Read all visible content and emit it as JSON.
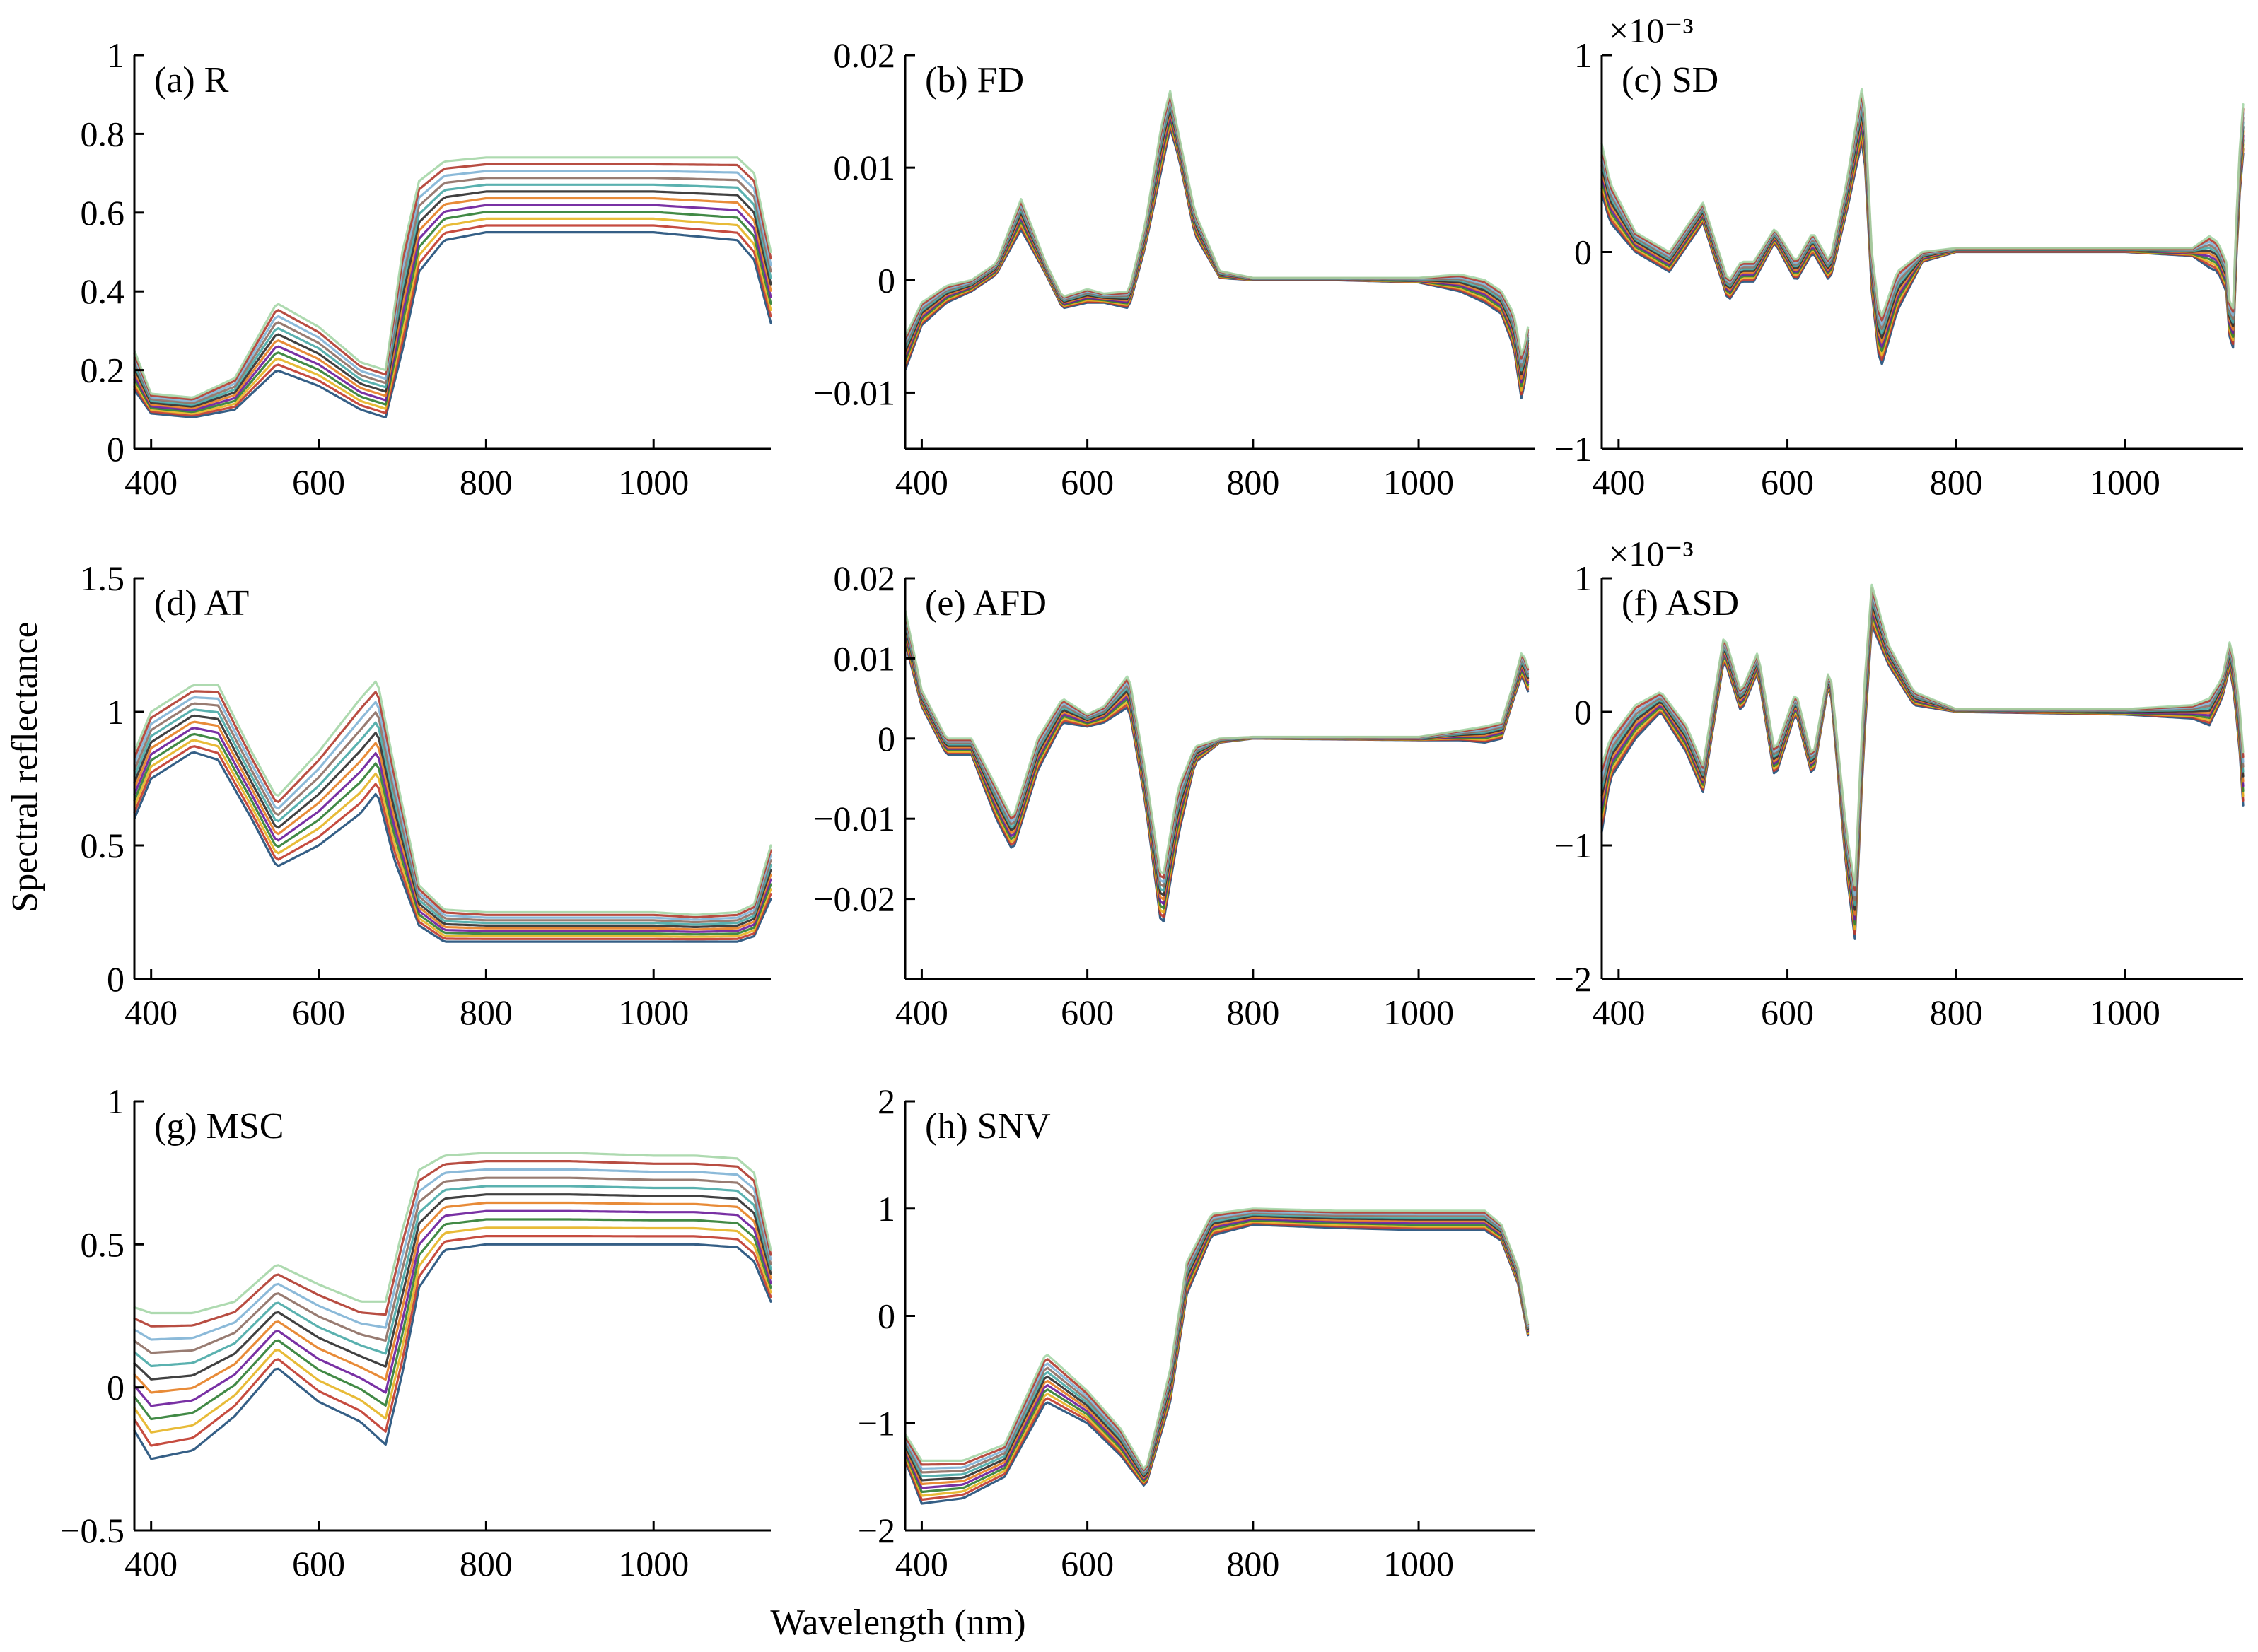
{
  "figure": {
    "ylabel": "Spectral reflectance",
    "xlabel": "Wavelength (nm)"
  },
  "palette": [
    "#1f4e79",
    "#c0392b",
    "#e6b422",
    "#2e7d32",
    "#6a1b9a",
    "#e67e22",
    "#2c2c2c",
    "#48a9a6",
    "#8d6e63",
    "#7fb3d5",
    "#b03a2e",
    "#a5d6a7"
  ],
  "chart_data": [
    {
      "id": "a",
      "type": "line",
      "title": "(a) R",
      "xlim": [
        380,
        1140
      ],
      "ylim": [
        0,
        1
      ],
      "yticks": [
        0,
        0.2,
        0.4,
        0.6,
        0.8,
        1
      ],
      "ytick_labels": [
        "0",
        "0.2",
        "0.4",
        "0.6",
        "0.8",
        "1"
      ],
      "xticks": [
        400,
        600,
        800,
        1000
      ],
      "xtick_labels": [
        "400",
        "600",
        "800",
        "1000"
      ],
      "scale_label": "",
      "x": [
        380,
        400,
        450,
        500,
        550,
        600,
        650,
        680,
        700,
        720,
        750,
        800,
        900,
        1000,
        1050,
        1100,
        1120,
        1140
      ],
      "y_min": [
        0.15,
        0.09,
        0.08,
        0.1,
        0.2,
        0.16,
        0.1,
        0.08,
        0.25,
        0.45,
        0.53,
        0.55,
        0.55,
        0.55,
        0.54,
        0.53,
        0.48,
        0.32
      ],
      "y_max": [
        0.25,
        0.14,
        0.13,
        0.18,
        0.37,
        0.31,
        0.22,
        0.2,
        0.5,
        0.68,
        0.73,
        0.74,
        0.74,
        0.74,
        0.74,
        0.74,
        0.7,
        0.5
      ],
      "num_series": 12
    },
    {
      "id": "b",
      "type": "line",
      "title": "(b) FD",
      "xlim": [
        380,
        1140
      ],
      "ylim": [
        -0.015,
        0.02
      ],
      "yticks": [
        -0.01,
        0,
        0.01,
        0.02
      ],
      "ytick_labels": [
        "−0.01",
        "0",
        "0.01",
        "0.02"
      ],
      "xticks": [
        400,
        600,
        800,
        1000
      ],
      "xtick_labels": [
        "400",
        "600",
        "800",
        "1000"
      ],
      "scale_label": "",
      "x": [
        380,
        400,
        430,
        460,
        490,
        520,
        550,
        570,
        600,
        620,
        650,
        670,
        690,
        700,
        710,
        730,
        760,
        800,
        900,
        1000,
        1050,
        1080,
        1100,
        1115,
        1125,
        1135
      ],
      "y_min": [
        -0.008,
        -0.004,
        -0.002,
        -0.001,
        0.0005,
        0.0045,
        0.0005,
        -0.0025,
        -0.002,
        -0.002,
        -0.0025,
        0.003,
        0.01,
        0.0135,
        0.011,
        0.004,
        0.0002,
        0,
        0,
        -0.0002,
        -0.001,
        -0.002,
        -0.003,
        -0.006,
        -0.011,
        -0.005
      ],
      "y_max": [
        -0.005,
        -0.002,
        -0.0005,
        0,
        0.0015,
        0.0072,
        0.0015,
        -0.0015,
        -0.0008,
        -0.0012,
        -0.001,
        0.005,
        0.014,
        0.0168,
        0.013,
        0.006,
        0.0008,
        0.0002,
        0.0002,
        0.0002,
        0.0005,
        0,
        -0.001,
        -0.003,
        -0.007,
        -0.003
      ],
      "num_series": 12
    },
    {
      "id": "c",
      "type": "line",
      "title": "(c) SD",
      "xlim": [
        380,
        1140
      ],
      "ylim": [
        -1,
        1
      ],
      "yticks": [
        -1,
        0,
        1
      ],
      "ytick_labels": [
        "−1",
        "0",
        "1"
      ],
      "xticks": [
        400,
        600,
        800,
        1000
      ],
      "xtick_labels": [
        "400",
        "600",
        "800",
        "1000"
      ],
      "scale_label": "×10⁻³",
      "x": [
        380,
        390,
        420,
        460,
        500,
        530,
        545,
        560,
        585,
        610,
        630,
        650,
        670,
        690,
        700,
        710,
        730,
        760,
        800,
        1000,
        1080,
        1100,
        1110,
        1120,
        1127,
        1134,
        1140
      ],
      "y_min": [
        0.3,
        0.15,
        0,
        -0.1,
        0.15,
        -0.25,
        -0.15,
        -0.15,
        0.05,
        -0.15,
        0.0,
        -0.15,
        0.2,
        0.6,
        -0.2,
        -0.6,
        -0.3,
        -0.05,
        0,
        0,
        -0.02,
        -0.08,
        -0.1,
        -0.2,
        -0.6,
        0.2,
        0.5
      ],
      "y_max": [
        0.55,
        0.35,
        0.1,
        0.0,
        0.25,
        -0.15,
        -0.05,
        -0.05,
        0.12,
        -0.05,
        0.1,
        -0.05,
        0.35,
        0.88,
        0.0,
        -0.35,
        -0.1,
        0.0,
        0.02,
        0.02,
        0.02,
        0.08,
        0.05,
        -0.05,
        -0.4,
        0.4,
        0.75
      ],
      "num_series": 12
    },
    {
      "id": "d",
      "type": "line",
      "title": "(d) AT",
      "xlim": [
        380,
        1140
      ],
      "ylim": [
        0,
        1.5
      ],
      "yticks": [
        0,
        0.5,
        1,
        1.5
      ],
      "ytick_labels": [
        "0",
        "0.5",
        "1",
        "1.5"
      ],
      "xticks": [
        400,
        600,
        800,
        1000
      ],
      "xtick_labels": [
        "400",
        "600",
        "800",
        "1000"
      ],
      "scale_label": "",
      "x": [
        380,
        400,
        450,
        480,
        520,
        550,
        600,
        650,
        670,
        690,
        720,
        750,
        800,
        1000,
        1050,
        1100,
        1120,
        1140
      ],
      "y_min": [
        0.6,
        0.75,
        0.85,
        0.82,
        0.6,
        0.42,
        0.5,
        0.62,
        0.7,
        0.45,
        0.2,
        0.14,
        0.14,
        0.14,
        0.14,
        0.14,
        0.16,
        0.3
      ],
      "y_max": [
        0.85,
        1.0,
        1.1,
        1.1,
        0.85,
        0.68,
        0.85,
        1.05,
        1.12,
        0.8,
        0.35,
        0.26,
        0.25,
        0.25,
        0.24,
        0.25,
        0.28,
        0.5
      ],
      "num_series": 12
    },
    {
      "id": "e",
      "type": "line",
      "title": "(e) AFD",
      "xlim": [
        380,
        1140
      ],
      "ylim": [
        -0.03,
        0.02
      ],
      "yticks": [
        -0.02,
        -0.01,
        0,
        0.01,
        0.02
      ],
      "ytick_labels": [
        "−0.02",
        "−0.01",
        "0",
        "0.01",
        "0.02"
      ],
      "xticks": [
        400,
        600,
        800,
        1000
      ],
      "xtick_labels": [
        "400",
        "600",
        "800",
        "1000"
      ],
      "scale_label": "",
      "x": [
        380,
        400,
        430,
        460,
        490,
        510,
        540,
        570,
        600,
        620,
        650,
        670,
        690,
        710,
        730,
        760,
        800,
        1000,
        1050,
        1080,
        1100,
        1115,
        1125,
        1135
      ],
      "y_min": [
        0.012,
        0.004,
        -0.002,
        -0.002,
        -0.01,
        -0.014,
        -0.004,
        0.002,
        0.0015,
        0.002,
        0.004,
        -0.008,
        -0.024,
        -0.012,
        -0.003,
        -0.0005,
        0,
        -0.0002,
        -0.0002,
        -0.0005,
        0,
        0.005,
        0.008,
        0.005
      ],
      "y_max": [
        0.016,
        0.006,
        0.0,
        0.0,
        -0.006,
        -0.01,
        0.0,
        0.005,
        0.003,
        0.004,
        0.008,
        -0.004,
        -0.018,
        -0.006,
        -0.001,
        0.0,
        0.0002,
        0.0002,
        0.001,
        0.0015,
        0.002,
        0.007,
        0.011,
        0.008
      ],
      "num_series": 12
    },
    {
      "id": "f",
      "type": "line",
      "title": "(f) ASD",
      "xlim": [
        380,
        1140
      ],
      "ylim": [
        -2,
        1
      ],
      "yticks": [
        -2,
        -1,
        0,
        1
      ],
      "ytick_labels": [
        "−2",
        "−1",
        "0",
        "1"
      ],
      "xticks": [
        400,
        600,
        800,
        1000
      ],
      "xtick_labels": [
        "400",
        "600",
        "800",
        "1000"
      ],
      "scale_label": "×10⁻³",
      "x": [
        380,
        390,
        420,
        450,
        480,
        500,
        525,
        545,
        565,
        585,
        610,
        630,
        650,
        670,
        680,
        690,
        700,
        720,
        750,
        800,
        1000,
        1080,
        1100,
        1115,
        1125,
        1135,
        1140
      ],
      "y_min": [
        -0.9,
        -0.5,
        -0.2,
        0.0,
        -0.3,
        -0.6,
        0.4,
        0.0,
        0.3,
        -0.5,
        0.0,
        -0.5,
        0.25,
        -1.2,
        -1.7,
        -0.3,
        0.65,
        0.35,
        0.05,
        0,
        -0.02,
        -0.05,
        -0.1,
        0.1,
        0.35,
        -0.2,
        -0.7
      ],
      "y_max": [
        -0.4,
        -0.2,
        0.05,
        0.15,
        -0.1,
        -0.4,
        0.58,
        0.15,
        0.45,
        -0.3,
        0.15,
        -0.35,
        0.35,
        -0.9,
        -1.3,
        0.1,
        0.95,
        0.5,
        0.15,
        0.02,
        0.02,
        0.05,
        0.1,
        0.25,
        0.55,
        0.1,
        -0.3
      ],
      "num_series": 12
    },
    {
      "id": "g",
      "type": "line",
      "title": "(g) MSC",
      "xlim": [
        380,
        1140
      ],
      "ylim": [
        -0.5,
        1
      ],
      "yticks": [
        -0.5,
        0,
        0.5,
        1
      ],
      "ytick_labels": [
        "−0.5",
        "0",
        "0.5",
        "1"
      ],
      "xticks": [
        400,
        600,
        800,
        1000
      ],
      "xtick_labels": [
        "400",
        "600",
        "800",
        "1000"
      ],
      "scale_label": "",
      "x": [
        380,
        400,
        450,
        500,
        550,
        600,
        650,
        680,
        700,
        720,
        750,
        800,
        900,
        1000,
        1050,
        1100,
        1120,
        1140
      ],
      "y_min": [
        -0.15,
        -0.25,
        -0.22,
        -0.1,
        0.07,
        -0.05,
        -0.12,
        -0.2,
        0.05,
        0.35,
        0.48,
        0.5,
        0.5,
        0.5,
        0.5,
        0.49,
        0.44,
        0.3
      ],
      "y_max": [
        0.28,
        0.26,
        0.26,
        0.3,
        0.43,
        0.36,
        0.3,
        0.3,
        0.55,
        0.76,
        0.81,
        0.82,
        0.82,
        0.81,
        0.81,
        0.8,
        0.75,
        0.48
      ],
      "num_series": 12
    },
    {
      "id": "h",
      "type": "line",
      "title": "(h) SNV",
      "xlim": [
        380,
        1140
      ],
      "ylim": [
        -2,
        2
      ],
      "yticks": [
        -2,
        -1,
        0,
        1,
        2
      ],
      "ytick_labels": [
        "−2",
        "−1",
        "0",
        "1",
        "2"
      ],
      "xticks": [
        400,
        600,
        800,
        1000
      ],
      "xtick_labels": [
        "400",
        "600",
        "800",
        "1000"
      ],
      "scale_label": "",
      "x": [
        380,
        400,
        450,
        500,
        550,
        600,
        640,
        670,
        700,
        720,
        750,
        800,
        900,
        1000,
        1050,
        1080,
        1100,
        1120,
        1135
      ],
      "y_min": [
        -1.35,
        -1.75,
        -1.7,
        -1.5,
        -0.8,
        -1.0,
        -1.3,
        -1.6,
        -0.8,
        0.2,
        0.75,
        0.85,
        0.82,
        0.8,
        0.8,
        0.8,
        0.7,
        0.3,
        -0.3
      ],
      "y_max": [
        -1.1,
        -1.35,
        -1.35,
        -1.2,
        -0.35,
        -0.7,
        -1.05,
        -1.45,
        -0.5,
        0.5,
        0.95,
        1.0,
        0.98,
        0.98,
        0.98,
        0.98,
        0.85,
        0.45,
        -0.2
      ],
      "num_series": 12
    }
  ]
}
